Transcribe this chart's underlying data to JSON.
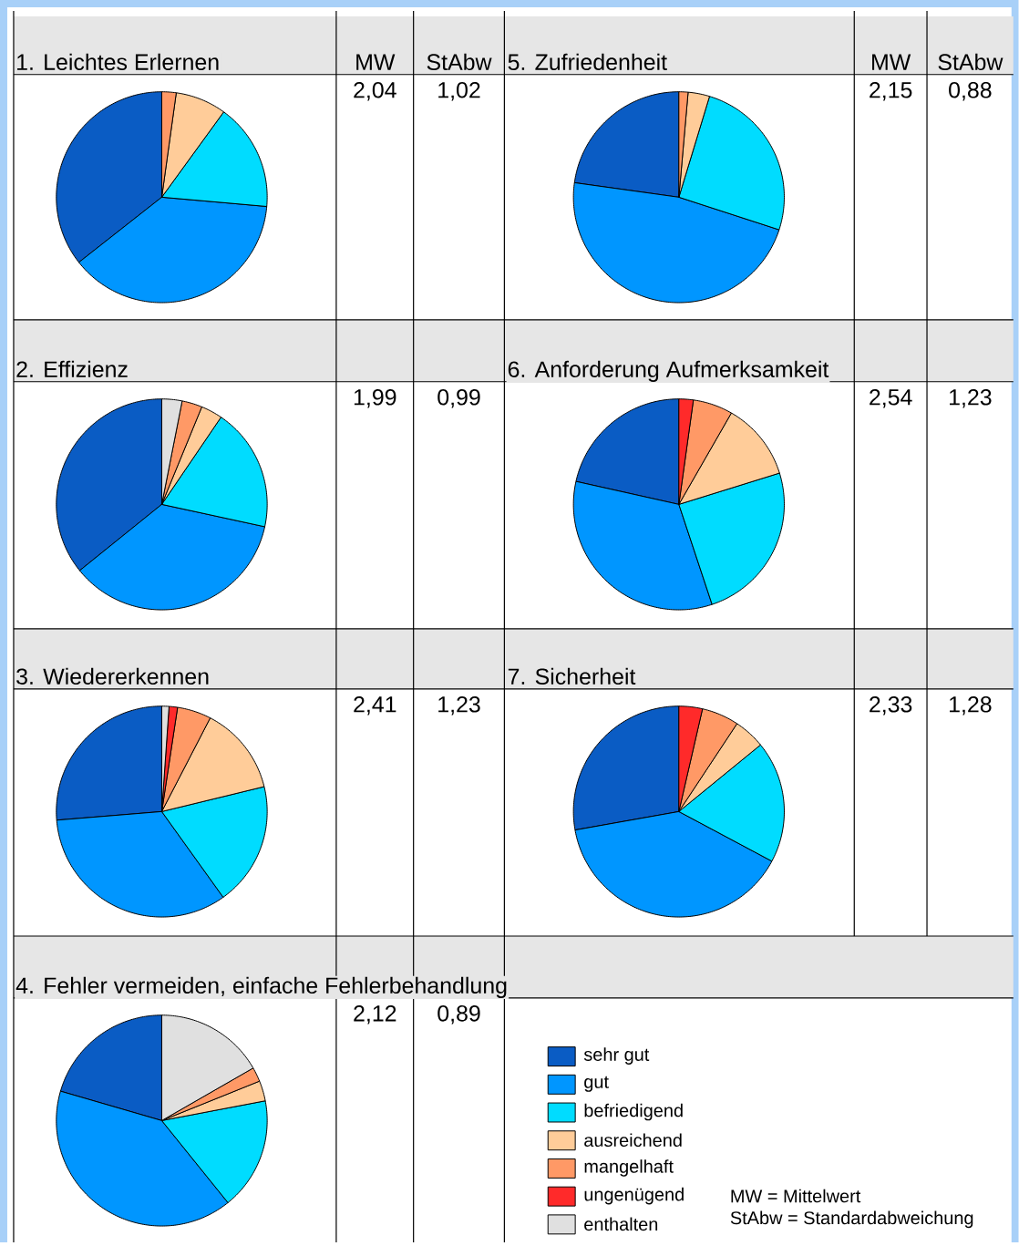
{
  "chart_data": [
    {
      "type": "pie",
      "title": "1. Leichtes Erlernen",
      "categories": [
        null,
        null,
        null,
        null,
        null,
        null,
        null
      ],
      "values": [
        35.6,
        38.0,
        16.4,
        7.8,
        2.2,
        0,
        0
      ],
      "colors": [
        "#0a5cc4",
        "#0096ff",
        "#00dcff",
        "#ffcc99",
        "#ff9966",
        "#ff2a2a",
        "#e0e0e0"
      ],
      "annotations": [
        "MW",
        "StAbw",
        "2,04",
        "1,02"
      ]
    },
    {
      "type": "pie",
      "title": "5. Zufriedenheit",
      "categories": [
        null,
        null,
        null,
        null,
        null,
        null,
        null
      ],
      "values": [
        22.8,
        47.2,
        25.3,
        3.3,
        1.4,
        0,
        0
      ],
      "colors": [
        "#0a5cc4",
        "#0096ff",
        "#00dcff",
        "#ffcc99",
        "#ff9966",
        "#ff2a2a",
        "#e0e0e0"
      ],
      "annotations": [
        "MW",
        "StAbw",
        "2,15",
        "0,88"
      ]
    },
    {
      "type": "pie",
      "title": "2. Effizienz",
      "categories": [
        null,
        null,
        null,
        null,
        null,
        null,
        null
      ],
      "values": [
        35.8,
        35.8,
        18.9,
        3.3,
        3.1,
        0,
        3.1
      ],
      "colors": [
        "#0a5cc4",
        "#0096ff",
        "#00dcff",
        "#ffcc99",
        "#ff9966",
        "#ff2a2a",
        "#e0e0e0"
      ],
      "annotations": [
        "1,99",
        "0,99"
      ]
    },
    {
      "type": "pie",
      "title": "6. Anforderung Aufmerksamkeit",
      "categories": [
        null,
        null,
        null,
        null,
        null,
        null,
        null
      ],
      "values": [
        21.5,
        33.6,
        24.7,
        11.9,
        6.1,
        2.2,
        0
      ],
      "colors": [
        "#0a5cc4",
        "#0096ff",
        "#00dcff",
        "#ffcc99",
        "#ff9966",
        "#ff2a2a",
        "#e0e0e0"
      ],
      "annotations": [
        "2,54",
        "1,23"
      ]
    },
    {
      "type": "pie",
      "title": "3.  Wiedererkennen",
      "categories": [
        null,
        null,
        null,
        null,
        null,
        null,
        null
      ],
      "values": [
        26.3,
        33.6,
        18.9,
        13.6,
        5.2,
        1.3,
        1.1
      ],
      "colors": [
        "#0a5cc4",
        "#0096ff",
        "#00dcff",
        "#ffcc99",
        "#ff9966",
        "#ff2a2a",
        "#e0e0e0"
      ],
      "annotations": [
        "2,41",
        "1,23"
      ]
    },
    {
      "type": "pie",
      "title": "7. Sicherheit",
      "categories": [
        null,
        null,
        null,
        null,
        null,
        null,
        null
      ],
      "values": [
        27.8,
        39.4,
        18.7,
        4.8,
        5.7,
        3.6,
        0
      ],
      "colors": [
        "#0a5cc4",
        "#0096ff",
        "#00dcff",
        "#ffcc99",
        "#ff9966",
        "#ff2a2a",
        "#e0e0e0"
      ],
      "annotations": [
        "2,33",
        "1,28"
      ]
    },
    {
      "type": "pie",
      "title": "4. Fehler vermeiden, einfache Fehlerbehandlung",
      "categories": [
        "sehr gut",
        "gut",
        "befriedigend",
        "ausreichend",
        "mangelhaft",
        "ungenügend",
        "enthalten"
      ],
      "values": [
        20.5,
        40.3,
        17.2,
        3.1,
        2.2,
        0,
        16.7
      ],
      "colors": [
        "#0a5cc4",
        "#0096ff",
        "#00dcff",
        "#ffcc99",
        "#ff9966",
        "#ff2a2a",
        "#e0e0e0"
      ],
      "annotations": [
        "2,12",
        "0,89"
      ],
      "legend": "right"
    },
    {
      "type": "other",
      "annotations": [
        "MW     =  Mittelwert",
        "StAbw =  Standardabweichung"
      ]
    }
  ]
}
